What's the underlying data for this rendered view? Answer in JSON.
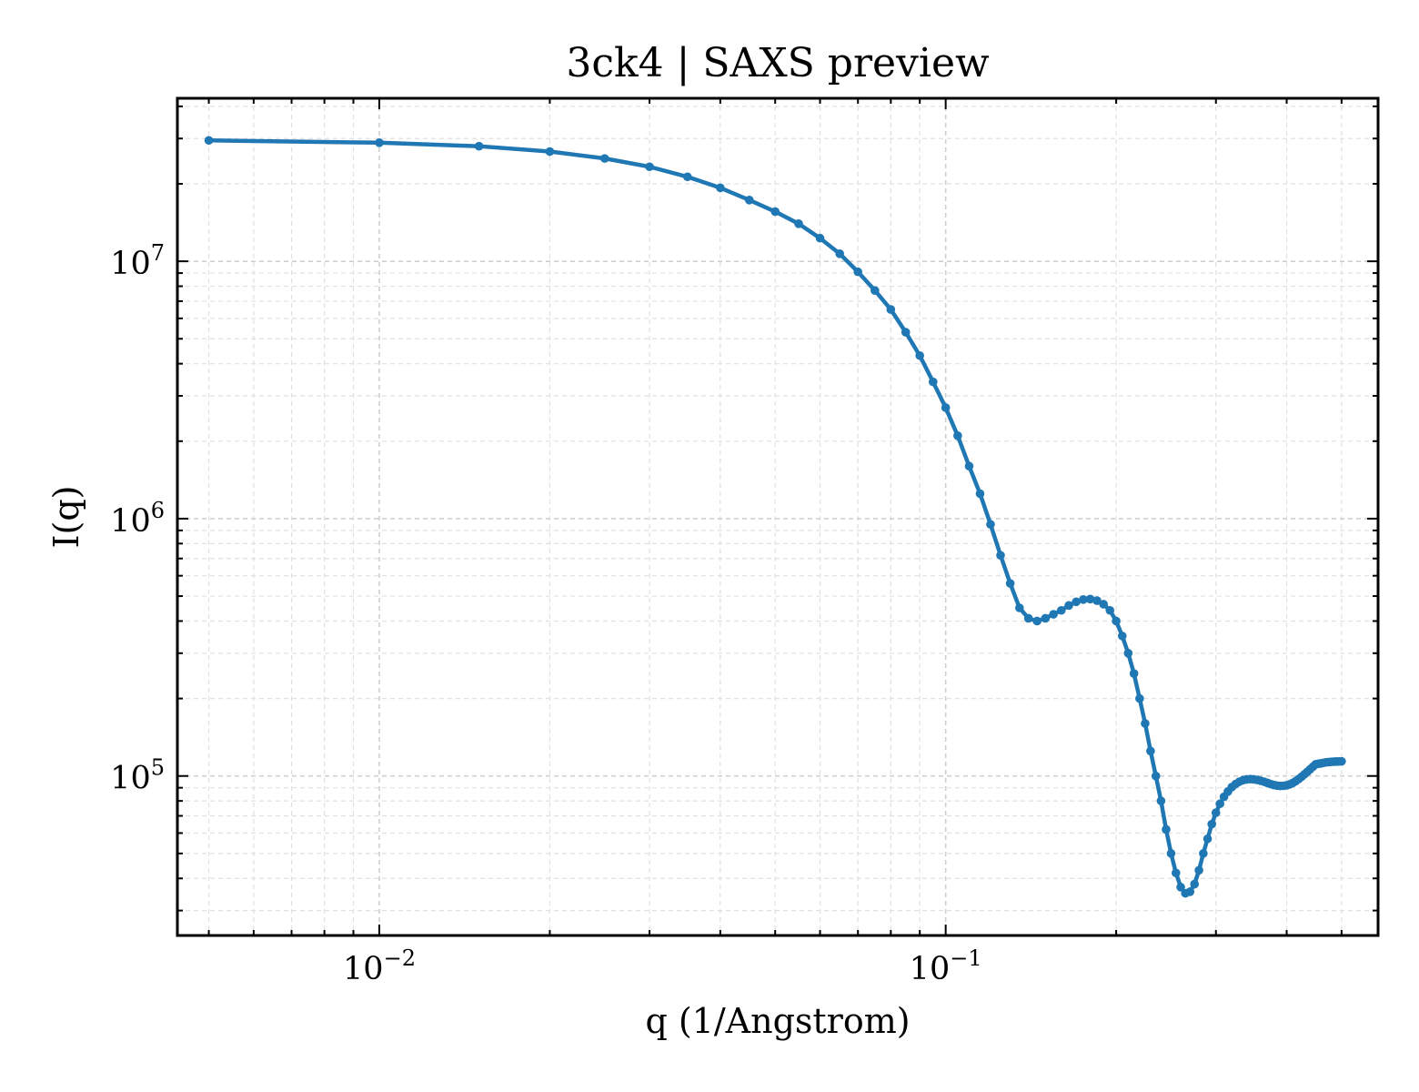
{
  "chart_data": {
    "type": "line",
    "title": "3ck4 | SAXS preview",
    "xlabel": "q (1/Angstrom)",
    "ylabel": "I(q)",
    "xscale": "log",
    "yscale": "log",
    "xlim": [
      0.0044,
      0.58
    ],
    "ylim": [
      24000,
      43000000
    ],
    "grid": true,
    "legend": "none",
    "x_ticks": [
      {
        "value": 0.01,
        "base": "10",
        "exp": "−2"
      },
      {
        "value": 0.1,
        "base": "10",
        "exp": "−1"
      }
    ],
    "y_ticks": [
      {
        "value": 100000,
        "base": "10",
        "exp": "5"
      },
      {
        "value": 1000000,
        "base": "10",
        "exp": "6"
      },
      {
        "value": 10000000,
        "base": "10",
        "exp": "7"
      }
    ],
    "series": [
      {
        "color": "#1f77b4",
        "x": [
          0.005,
          0.01,
          0.015,
          0.02,
          0.025,
          0.03,
          0.035,
          0.04,
          0.045,
          0.05,
          0.055,
          0.06,
          0.065,
          0.07,
          0.075,
          0.08,
          0.085,
          0.09,
          0.095,
          0.1,
          0.105,
          0.11,
          0.115,
          0.12,
          0.125,
          0.13,
          0.135,
          0.14,
          0.145,
          0.15,
          0.155,
          0.16,
          0.165,
          0.17,
          0.175,
          0.18,
          0.185,
          0.19,
          0.195,
          0.2,
          0.205,
          0.21,
          0.215,
          0.22,
          0.225,
          0.23,
          0.235,
          0.24,
          0.245,
          0.25,
          0.255,
          0.26,
          0.265,
          0.27,
          0.275,
          0.28,
          0.285,
          0.29,
          0.295,
          0.3,
          0.305,
          0.31,
          0.315,
          0.32,
          0.325,
          0.33,
          0.335,
          0.34,
          0.345,
          0.35,
          0.355,
          0.36,
          0.365,
          0.37,
          0.375,
          0.38,
          0.385,
          0.39,
          0.395,
          0.4,
          0.405,
          0.41,
          0.415,
          0.42,
          0.425,
          0.43,
          0.435,
          0.44,
          0.445,
          0.45,
          0.455,
          0.46,
          0.465,
          0.47,
          0.475,
          0.48,
          0.485,
          0.49,
          0.495,
          0.5
        ],
        "y": [
          29500000,
          28900000,
          28000000,
          26700000,
          25100000,
          23300000,
          21300000,
          19300000,
          17300000,
          15600000,
          14000000,
          12300000,
          10700000,
          9100000,
          7700000,
          6500000,
          5300000,
          4300000,
          3400000,
          2700000,
          2100000,
          1600000,
          1250000,
          950000,
          720000,
          560000,
          450000,
          410000,
          400000,
          410000,
          425000,
          440000,
          460000,
          475000,
          485000,
          487000,
          480000,
          465000,
          440000,
          400000,
          350000,
          300000,
          250000,
          200000,
          160000,
          125000,
          100000,
          80000,
          62000,
          50000,
          42000,
          37000,
          35000,
          35500,
          38000,
          43000,
          50000,
          57000,
          65000,
          72000,
          78000,
          83000,
          87000,
          90500,
          93000,
          95000,
          96300,
          97000,
          97200,
          97000,
          96500,
          95800,
          95000,
          94000,
          93000,
          92200,
          91700,
          91500,
          91600,
          92000,
          92800,
          94000,
          95500,
          97300,
          99300,
          101500,
          103800,
          106200,
          108600,
          111000,
          111500,
          112000,
          112500,
          113000,
          113300,
          113500,
          113700,
          113800,
          113900,
          114000
        ]
      }
    ]
  }
}
